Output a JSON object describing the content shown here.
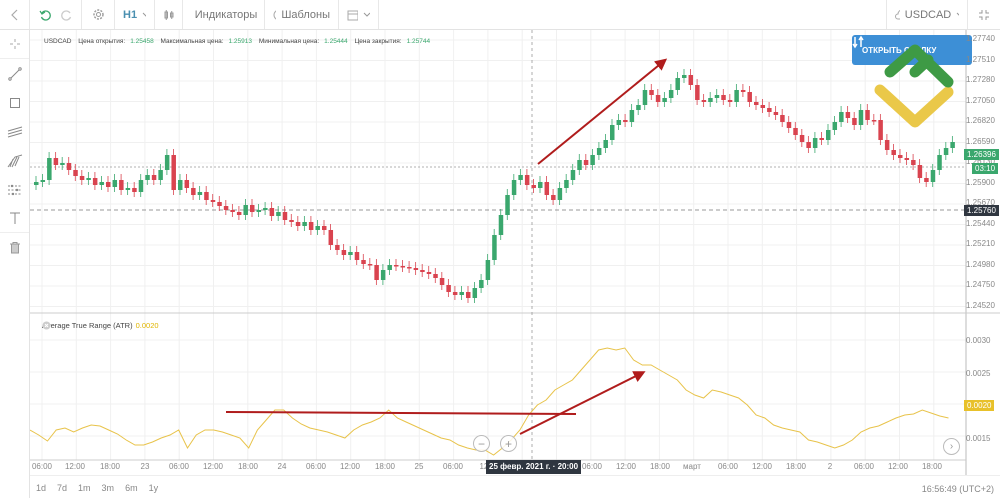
{
  "toolbar": {
    "back_icon": "chevron-left-icon",
    "undo_icon": "undo-icon",
    "redo_icon": "redo-icon",
    "settings_icon": "gear-icon",
    "timeframe": "H1",
    "chart_type_icon": "candles-icon",
    "indicators_label": "Индикаторы",
    "templates_label": "Шаблоны",
    "calendar_icon": "calendar-icon",
    "symbol": "USDCAD",
    "fullscreen_icon": "fullscreen-icon"
  },
  "left_tools": [
    {
      "name": "crosshair-icon"
    },
    {
      "name": "trend-line-icon"
    },
    {
      "name": "rectangle-icon"
    },
    {
      "name": "channel-icon"
    },
    {
      "name": "fibonacci-icon"
    },
    {
      "name": "pattern-icon"
    },
    {
      "name": "text-icon"
    },
    {
      "name": "trash-icon"
    }
  ],
  "ohlc": {
    "symbol": "USDCAD",
    "open_label": "Цена открытия:",
    "open": "1.25458",
    "high_label": "Максимальная цена:",
    "high": "1.25913",
    "low_label": "Минимальная цена:",
    "low": "1.25444",
    "close_label": "Цена закрытия:",
    "close": "1.25744"
  },
  "trade_button": {
    "label": "ОТКРЫТЬ СДЕЛКУ"
  },
  "price_axis": {
    "ticks": [
      "1.27740",
      "1.27510",
      "1.27280",
      "1.27050",
      "1.26820",
      "1.26590",
      "1.26130",
      "1.25900",
      "1.25670",
      "1.25440",
      "1.25210",
      "1.24980",
      "1.24750",
      "1.24520"
    ],
    "current_price": "1.26396",
    "countdown": "03:10",
    "cursor_price": "1.25760",
    "current_color": "#3aa76d",
    "cursor_color": "#2f3640"
  },
  "indicator": {
    "name": "Average True Range (ATR)",
    "value": "0.0020",
    "ticks": [
      "0.0030",
      "0.0025",
      "0.0020",
      "0.0015"
    ],
    "line_color": "#e8c34a"
  },
  "time_axis": {
    "labels": [
      "06:00",
      "12:00",
      "18:00",
      "23",
      "06:00",
      "12:00",
      "18:00",
      "24",
      "06:00",
      "12:00",
      "18:00",
      "25",
      "06:00",
      "12:",
      "06:00",
      "12:00",
      "18:00",
      "март",
      "06:00",
      "12:00",
      "18:00",
      "2",
      "06:00",
      "12:00",
      "18:00"
    ],
    "cursor_label": "25 февр. 2021 г. · 20:00"
  },
  "ranges": [
    "1d",
    "7d",
    "1m",
    "3m",
    "6m",
    "1y"
  ],
  "clock": "16:56:49 (UTC+2)",
  "colors": {
    "bull": "#3aa76d",
    "bear": "#d9434f",
    "annotation": "#b01c1c"
  }
}
